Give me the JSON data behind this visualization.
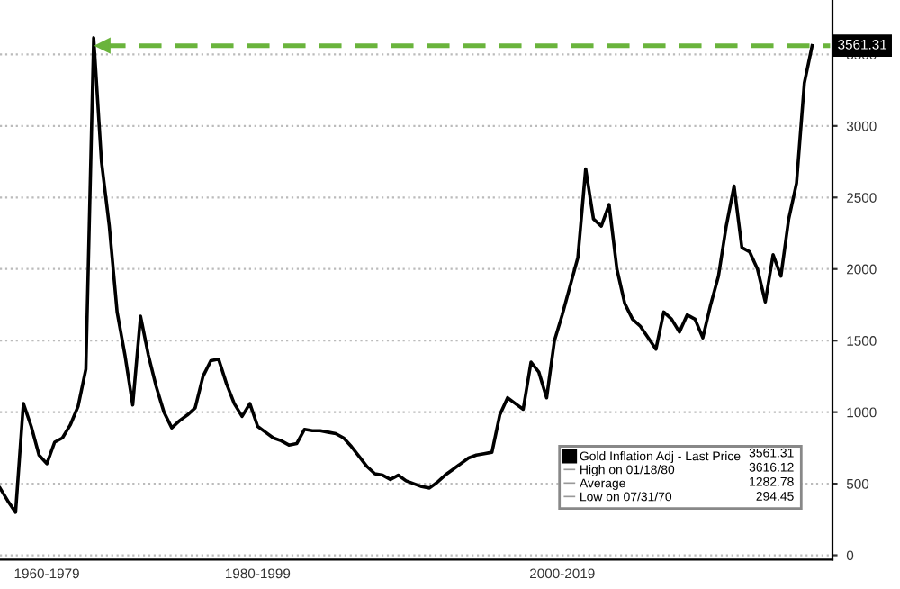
{
  "chart_data": {
    "type": "line",
    "categories": [
      null,
      null,
      null,
      null,
      null,
      null,
      "1960-1979",
      null,
      null,
      null,
      null,
      null,
      null,
      null,
      null,
      null,
      null,
      null,
      null,
      null,
      null,
      null,
      null,
      null,
      null,
      null,
      null,
      null,
      null,
      null,
      null,
      null,
      null,
      "1980-1999",
      null,
      null,
      null,
      null,
      null,
      null,
      null,
      null,
      null,
      null,
      null,
      null,
      null,
      null,
      null,
      null,
      null,
      null,
      null,
      null,
      null,
      null,
      null,
      null,
      null,
      null,
      null,
      null,
      null,
      null,
      null,
      null,
      null,
      null,
      null,
      null,
      null,
      null,
      "2000-2019",
      null,
      null,
      null,
      null,
      null,
      null,
      null,
      null,
      null,
      null,
      null,
      null,
      null,
      null,
      null,
      null,
      null,
      null,
      null,
      null,
      null,
      null,
      null,
      null,
      null,
      null,
      null,
      null,
      null,
      null,
      null,
      null
    ],
    "series": [
      {
        "name": "Gold Inflation Adj - Last Price",
        "color": "#000000",
        "values": [
          470,
          380,
          300,
          1060,
          900,
          700,
          640,
          790,
          820,
          910,
          1040,
          1300,
          3616.12,
          2750,
          2300,
          1700,
          1400,
          1050,
          1670,
          1400,
          1180,
          1000,
          890,
          940,
          980,
          1030,
          1250,
          1360,
          1370,
          1200,
          1060,
          970,
          1060,
          900,
          860,
          820,
          800,
          770,
          780,
          880,
          870,
          870,
          860,
          850,
          820,
          760,
          690,
          620,
          570,
          560,
          530,
          560,
          520,
          500,
          480,
          470,
          510,
          560,
          600,
          640,
          680,
          700,
          710,
          720,
          980,
          1100,
          1060,
          1020,
          1350,
          1280,
          1100,
          1500,
          1680,
          1880,
          2080,
          2700,
          2350,
          2300,
          2450,
          2000,
          1760,
          1650,
          1600,
          1520,
          1440,
          1700,
          1650,
          1560,
          1680,
          1650,
          1520,
          1750,
          1950,
          2300,
          2580,
          2150,
          2120,
          2000,
          1770,
          2100,
          1950,
          2350,
          2600,
          3300,
          3561.31
        ]
      }
    ],
    "ylim": [
      -30,
      3880
    ],
    "yticks": [
      0,
      500,
      1000,
      1500,
      2000,
      2500,
      3000,
      3500
    ],
    "grid": "y",
    "legend": "bottom right",
    "ref_lines": [
      {
        "axis": "y",
        "value": 3561.31,
        "label": "3561.31",
        "color": "#6ab43c",
        "line_style": "dashed"
      }
    ],
    "annotations": [
      "3561.31",
      "High on 01/18/80",
      "3616.12",
      "Average",
      "1282.78",
      "Low on 07/31/70",
      "294.45"
    ]
  }
}
